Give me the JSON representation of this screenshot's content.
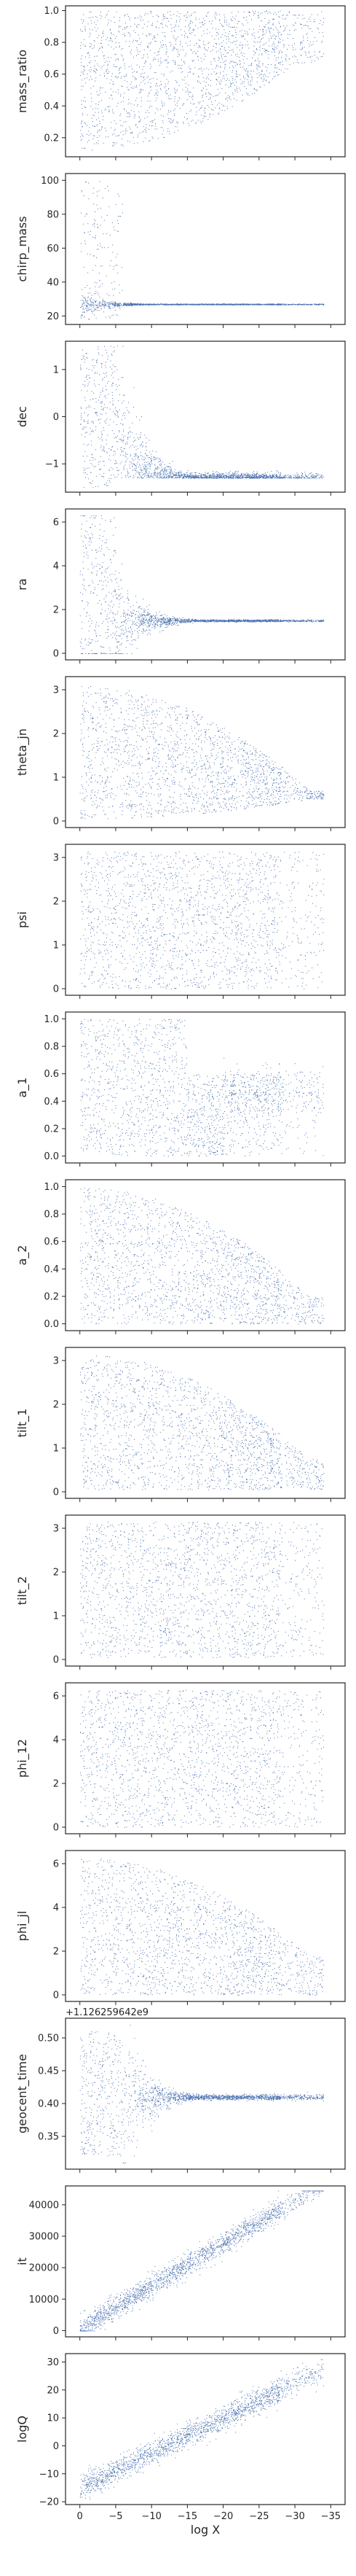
{
  "chart_data": {
    "type": "scatter",
    "xlabel": "log X",
    "shared_x": true,
    "xlim": [
      2,
      -37
    ],
    "x_ticks": [
      0,
      -5,
      -10,
      -15,
      -20,
      -25,
      -30,
      -35
    ],
    "x_tick_labels": [
      "0",
      "−5",
      "−10",
      "−15",
      "−20",
      "−25",
      "−30",
      "−35"
    ],
    "marker_color": "#4c72b0",
    "grid": false,
    "panels": [
      {
        "ylabel": "mass_ratio",
        "ylim": [
          0.08,
          1.03
        ],
        "y_ticks": [
          0.2,
          0.4,
          0.6,
          0.8,
          1.0
        ],
        "y_tick_labels": [
          "0.2",
          "0.4",
          "0.6",
          "0.8",
          "1.0"
        ],
        "offset_text": "",
        "pattern": "mass_ratio"
      },
      {
        "ylabel": "chirp_mass",
        "ylim": [
          15,
          104
        ],
        "y_ticks": [
          20,
          40,
          60,
          80,
          100
        ],
        "y_tick_labels": [
          "20",
          "40",
          "60",
          "80",
          "100"
        ],
        "offset_text": "",
        "pattern": "chirp_mass"
      },
      {
        "ylabel": "dec",
        "ylim": [
          -1.6,
          1.6
        ],
        "y_ticks": [
          -1,
          0,
          1
        ],
        "y_tick_labels": [
          "−1",
          "0",
          "1"
        ],
        "offset_text": "",
        "pattern": "dec"
      },
      {
        "ylabel": "ra",
        "ylim": [
          -0.3,
          6.6
        ],
        "y_ticks": [
          0,
          2,
          4,
          6
        ],
        "y_tick_labels": [
          "0",
          "2",
          "4",
          "6"
        ],
        "offset_text": "",
        "pattern": "ra"
      },
      {
        "ylabel": "theta_jn",
        "ylim": [
          -0.15,
          3.3
        ],
        "y_ticks": [
          0,
          1,
          2,
          3
        ],
        "y_tick_labels": [
          "0",
          "1",
          "2",
          "3"
        ],
        "offset_text": "",
        "pattern": "theta_jn"
      },
      {
        "ylabel": "psi",
        "ylim": [
          -0.15,
          3.3
        ],
        "y_ticks": [
          0,
          1,
          2,
          3
        ],
        "y_tick_labels": [
          "0",
          "1",
          "2",
          "3"
        ],
        "offset_text": "",
        "pattern": "psi"
      },
      {
        "ylabel": "a_1",
        "ylim": [
          -0.05,
          1.05
        ],
        "y_ticks": [
          0.0,
          0.2,
          0.4,
          0.6,
          0.8,
          1.0
        ],
        "y_tick_labels": [
          "0.0",
          "0.2",
          "0.4",
          "0.6",
          "0.8",
          "1.0"
        ],
        "offset_text": "",
        "pattern": "a_1"
      },
      {
        "ylabel": "a_2",
        "ylim": [
          -0.05,
          1.05
        ],
        "y_ticks": [
          0.0,
          0.2,
          0.4,
          0.6,
          0.8,
          1.0
        ],
        "y_tick_labels": [
          "0.0",
          "0.2",
          "0.4",
          "0.6",
          "0.8",
          "1.0"
        ],
        "offset_text": "",
        "pattern": "a_2"
      },
      {
        "ylabel": "tilt_1",
        "ylim": [
          -0.15,
          3.3
        ],
        "y_ticks": [
          0,
          1,
          2,
          3
        ],
        "y_tick_labels": [
          "0",
          "1",
          "2",
          "3"
        ],
        "offset_text": "",
        "pattern": "tilt_1"
      },
      {
        "ylabel": "tilt_2",
        "ylim": [
          -0.15,
          3.3
        ],
        "y_ticks": [
          0,
          1,
          2,
          3
        ],
        "y_tick_labels": [
          "0",
          "1",
          "2",
          "3"
        ],
        "offset_text": "",
        "pattern": "tilt_2"
      },
      {
        "ylabel": "phi_12",
        "ylim": [
          -0.3,
          6.6
        ],
        "y_ticks": [
          0,
          2,
          4,
          6
        ],
        "y_tick_labels": [
          "0",
          "2",
          "4",
          "6"
        ],
        "offset_text": "",
        "pattern": "phi_12"
      },
      {
        "ylabel": "phi_jl",
        "ylim": [
          -0.3,
          6.6
        ],
        "y_ticks": [
          0,
          2,
          4,
          6
        ],
        "y_tick_labels": [
          "0",
          "2",
          "4",
          "6"
        ],
        "offset_text": "",
        "pattern": "phi_jl"
      },
      {
        "ylabel": "geocent_time",
        "ylim": [
          0.3,
          0.53
        ],
        "y_ticks": [
          0.35,
          0.4,
          0.45,
          0.5
        ],
        "y_tick_labels": [
          "0.35",
          "0.40",
          "0.45",
          "0.50"
        ],
        "offset_text": "+1.126259642e9",
        "pattern": "geocent_time"
      },
      {
        "ylabel": "it",
        "ylim": [
          -2000,
          46000
        ],
        "y_ticks": [
          0,
          10000,
          20000,
          30000,
          40000
        ],
        "y_tick_labels": [
          "0",
          "10000",
          "20000",
          "30000",
          "40000"
        ],
        "offset_text": "",
        "pattern": "it"
      },
      {
        "ylabel": "logQ",
        "ylim": [
          -21,
          33
        ],
        "y_ticks": [
          -20,
          -10,
          0,
          10,
          20,
          30
        ],
        "y_tick_labels": [
          "−20",
          "−10",
          "0",
          "10",
          "20",
          "30"
        ],
        "offset_text": "",
        "pattern": "logQ"
      }
    ]
  }
}
